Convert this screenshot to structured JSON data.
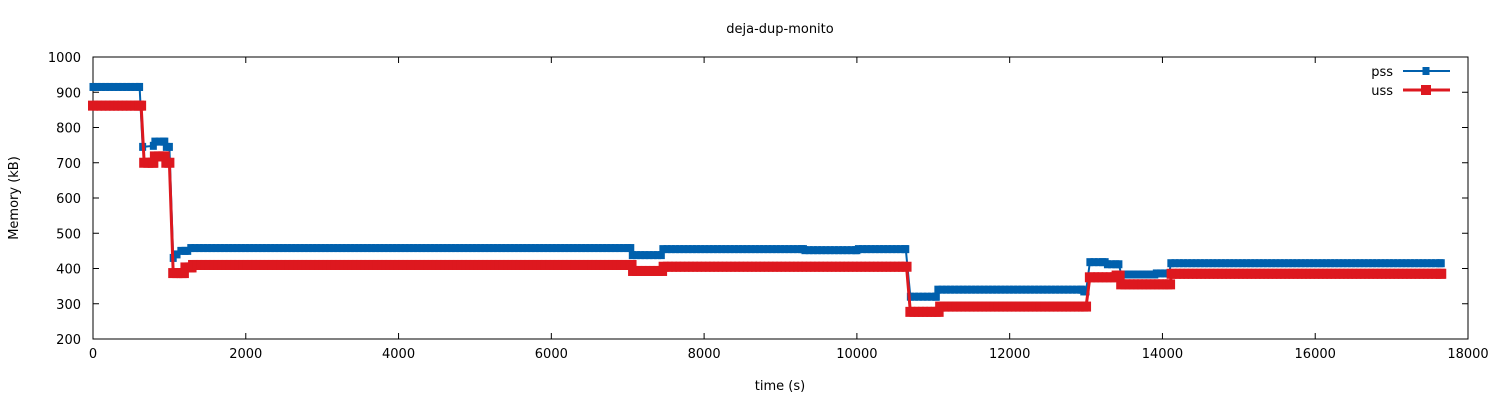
{
  "chart_data": {
    "type": "line",
    "title": "deja-dup-monito",
    "xlabel": "time (s)",
    "ylabel": "Memory (kB)",
    "xlim": [
      0,
      18000
    ],
    "ylim": [
      200,
      1000
    ],
    "xticks": [
      "0",
      "2000",
      "4000",
      "6000",
      "8000",
      "10000",
      "12000",
      "14000",
      "16000",
      "18000"
    ],
    "yticks": [
      "200",
      "300",
      "400",
      "500",
      "600",
      "700",
      "800",
      "900",
      "1000"
    ],
    "grid": false,
    "legend_position": "top-right",
    "series": [
      {
        "name": "pss",
        "color": "#0060ad",
        "marker": "circle",
        "points": [
          [
            0,
            915
          ],
          [
            610,
            915
          ],
          [
            650,
            745
          ],
          [
            790,
            748
          ],
          [
            810,
            760
          ],
          [
            940,
            760
          ],
          [
            960,
            745
          ],
          [
            1000,
            745
          ],
          [
            1050,
            430
          ],
          [
            1100,
            440
          ],
          [
            1150,
            450
          ],
          [
            1240,
            450
          ],
          [
            1280,
            458
          ],
          [
            7040,
            458
          ],
          [
            7060,
            438
          ],
          [
            7440,
            438
          ],
          [
            7460,
            455
          ],
          [
            9300,
            455
          ],
          [
            9320,
            452
          ],
          [
            10000,
            452
          ],
          [
            10020,
            455
          ],
          [
            10640,
            455
          ],
          [
            10700,
            320
          ],
          [
            11040,
            320
          ],
          [
            11060,
            340
          ],
          [
            12950,
            340
          ],
          [
            12970,
            335
          ],
          [
            13000,
            335
          ],
          [
            13050,
            418
          ],
          [
            13250,
            418
          ],
          [
            13280,
            412
          ],
          [
            13430,
            412
          ],
          [
            13460,
            383
          ],
          [
            13900,
            383
          ],
          [
            13920,
            386
          ],
          [
            14090,
            386
          ],
          [
            14110,
            415
          ],
          [
            17650,
            415
          ]
        ]
      },
      {
        "name": "uss",
        "color": "#dd181f",
        "marker": "square",
        "points": [
          [
            0,
            862
          ],
          [
            630,
            862
          ],
          [
            670,
            700
          ],
          [
            790,
            700
          ],
          [
            810,
            718
          ],
          [
            940,
            718
          ],
          [
            960,
            700
          ],
          [
            1000,
            700
          ],
          [
            1050,
            387
          ],
          [
            1190,
            387
          ],
          [
            1210,
            403
          ],
          [
            1290,
            403
          ],
          [
            1310,
            410
          ],
          [
            7050,
            410
          ],
          [
            7070,
            393
          ],
          [
            7450,
            393
          ],
          [
            7470,
            405
          ],
          [
            10650,
            405
          ],
          [
            10700,
            277
          ],
          [
            11070,
            277
          ],
          [
            11090,
            292
          ],
          [
            13000,
            292
          ],
          [
            13050,
            375
          ],
          [
            13380,
            375
          ],
          [
            13400,
            380
          ],
          [
            13440,
            380
          ],
          [
            13460,
            355
          ],
          [
            14100,
            355
          ],
          [
            14120,
            385
          ],
          [
            17650,
            385
          ]
        ]
      }
    ]
  }
}
